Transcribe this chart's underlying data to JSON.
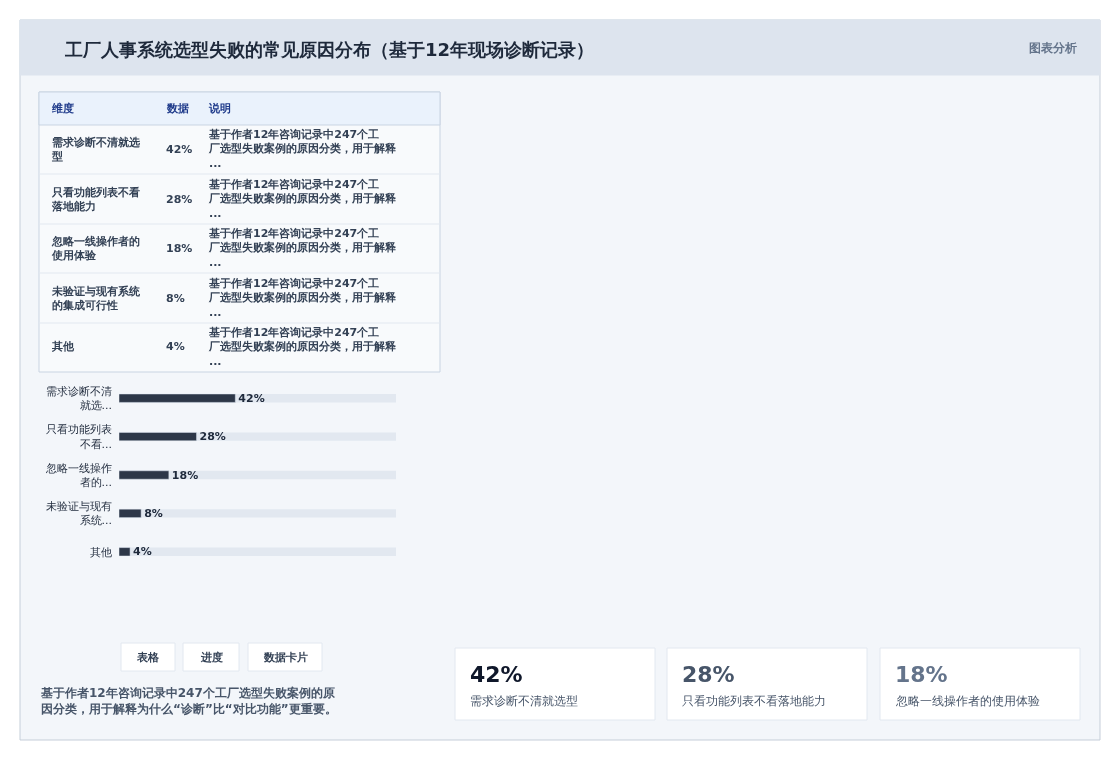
{
  "chart_data": [
    {
      "type": "bar",
      "orientation": "horizontal",
      "title": "工厂人事系统选型失败的常见原因分布（基于12年现场诊断记录）",
      "categories": [
        "需求诊断不清就选...",
        "只看功能列表不看...",
        "忽略一线操作者的...",
        "未验证与现有系统...",
        "其他"
      ],
      "values": [
        42,
        28,
        18,
        8,
        4
      ],
      "value_labels": [
        "42%",
        "28%",
        "18%",
        "8%",
        "4%"
      ],
      "color": "#2d3748",
      "tick_labels": "y",
      "grid": false,
      "legend": false
    },
    {
      "type": "other",
      "annotations": [
        "维度",
        "数据",
        "说明",
        "需求诊断不清就选型",
        "42%",
        "基于作者12年咨询记录中247个工厂选型失败案例的原因分类，用于解释...",
        "只看功能列表不看落地能力",
        "28%",
        "基于作者12年咨询记录中247个工厂选型失败案例的原因分类，用于解释...",
        "忽略一线操作者的使用体验",
        "18%",
        "基于作者12年咨询记录中247个工厂选型失败案例的原因分类，用于解释...",
        "未验证与现有系统的集成可行性",
        "8%",
        "基于作者12年咨询记录中247个工厂选型失败案例的原因分类，用于解释...",
        "其他",
        "4%",
        "基于作者12年咨询记录中247个工厂选型失败案例的原因分类，用于解释...",
        "42%",
        "需求诊断不清就选型",
        "28%",
        "只看功能列表不看落地能力",
        "18%",
        "忽略一线操作者的使用体验",
        "表格",
        "进度",
        "数据卡片",
        "基于作者12年咨询记录中247个工厂选型失败案例的原因分类，用于解释为什么“诊断”比“对比功能”更重要。",
        "图表分析"
      ]
    }
  ]
}
